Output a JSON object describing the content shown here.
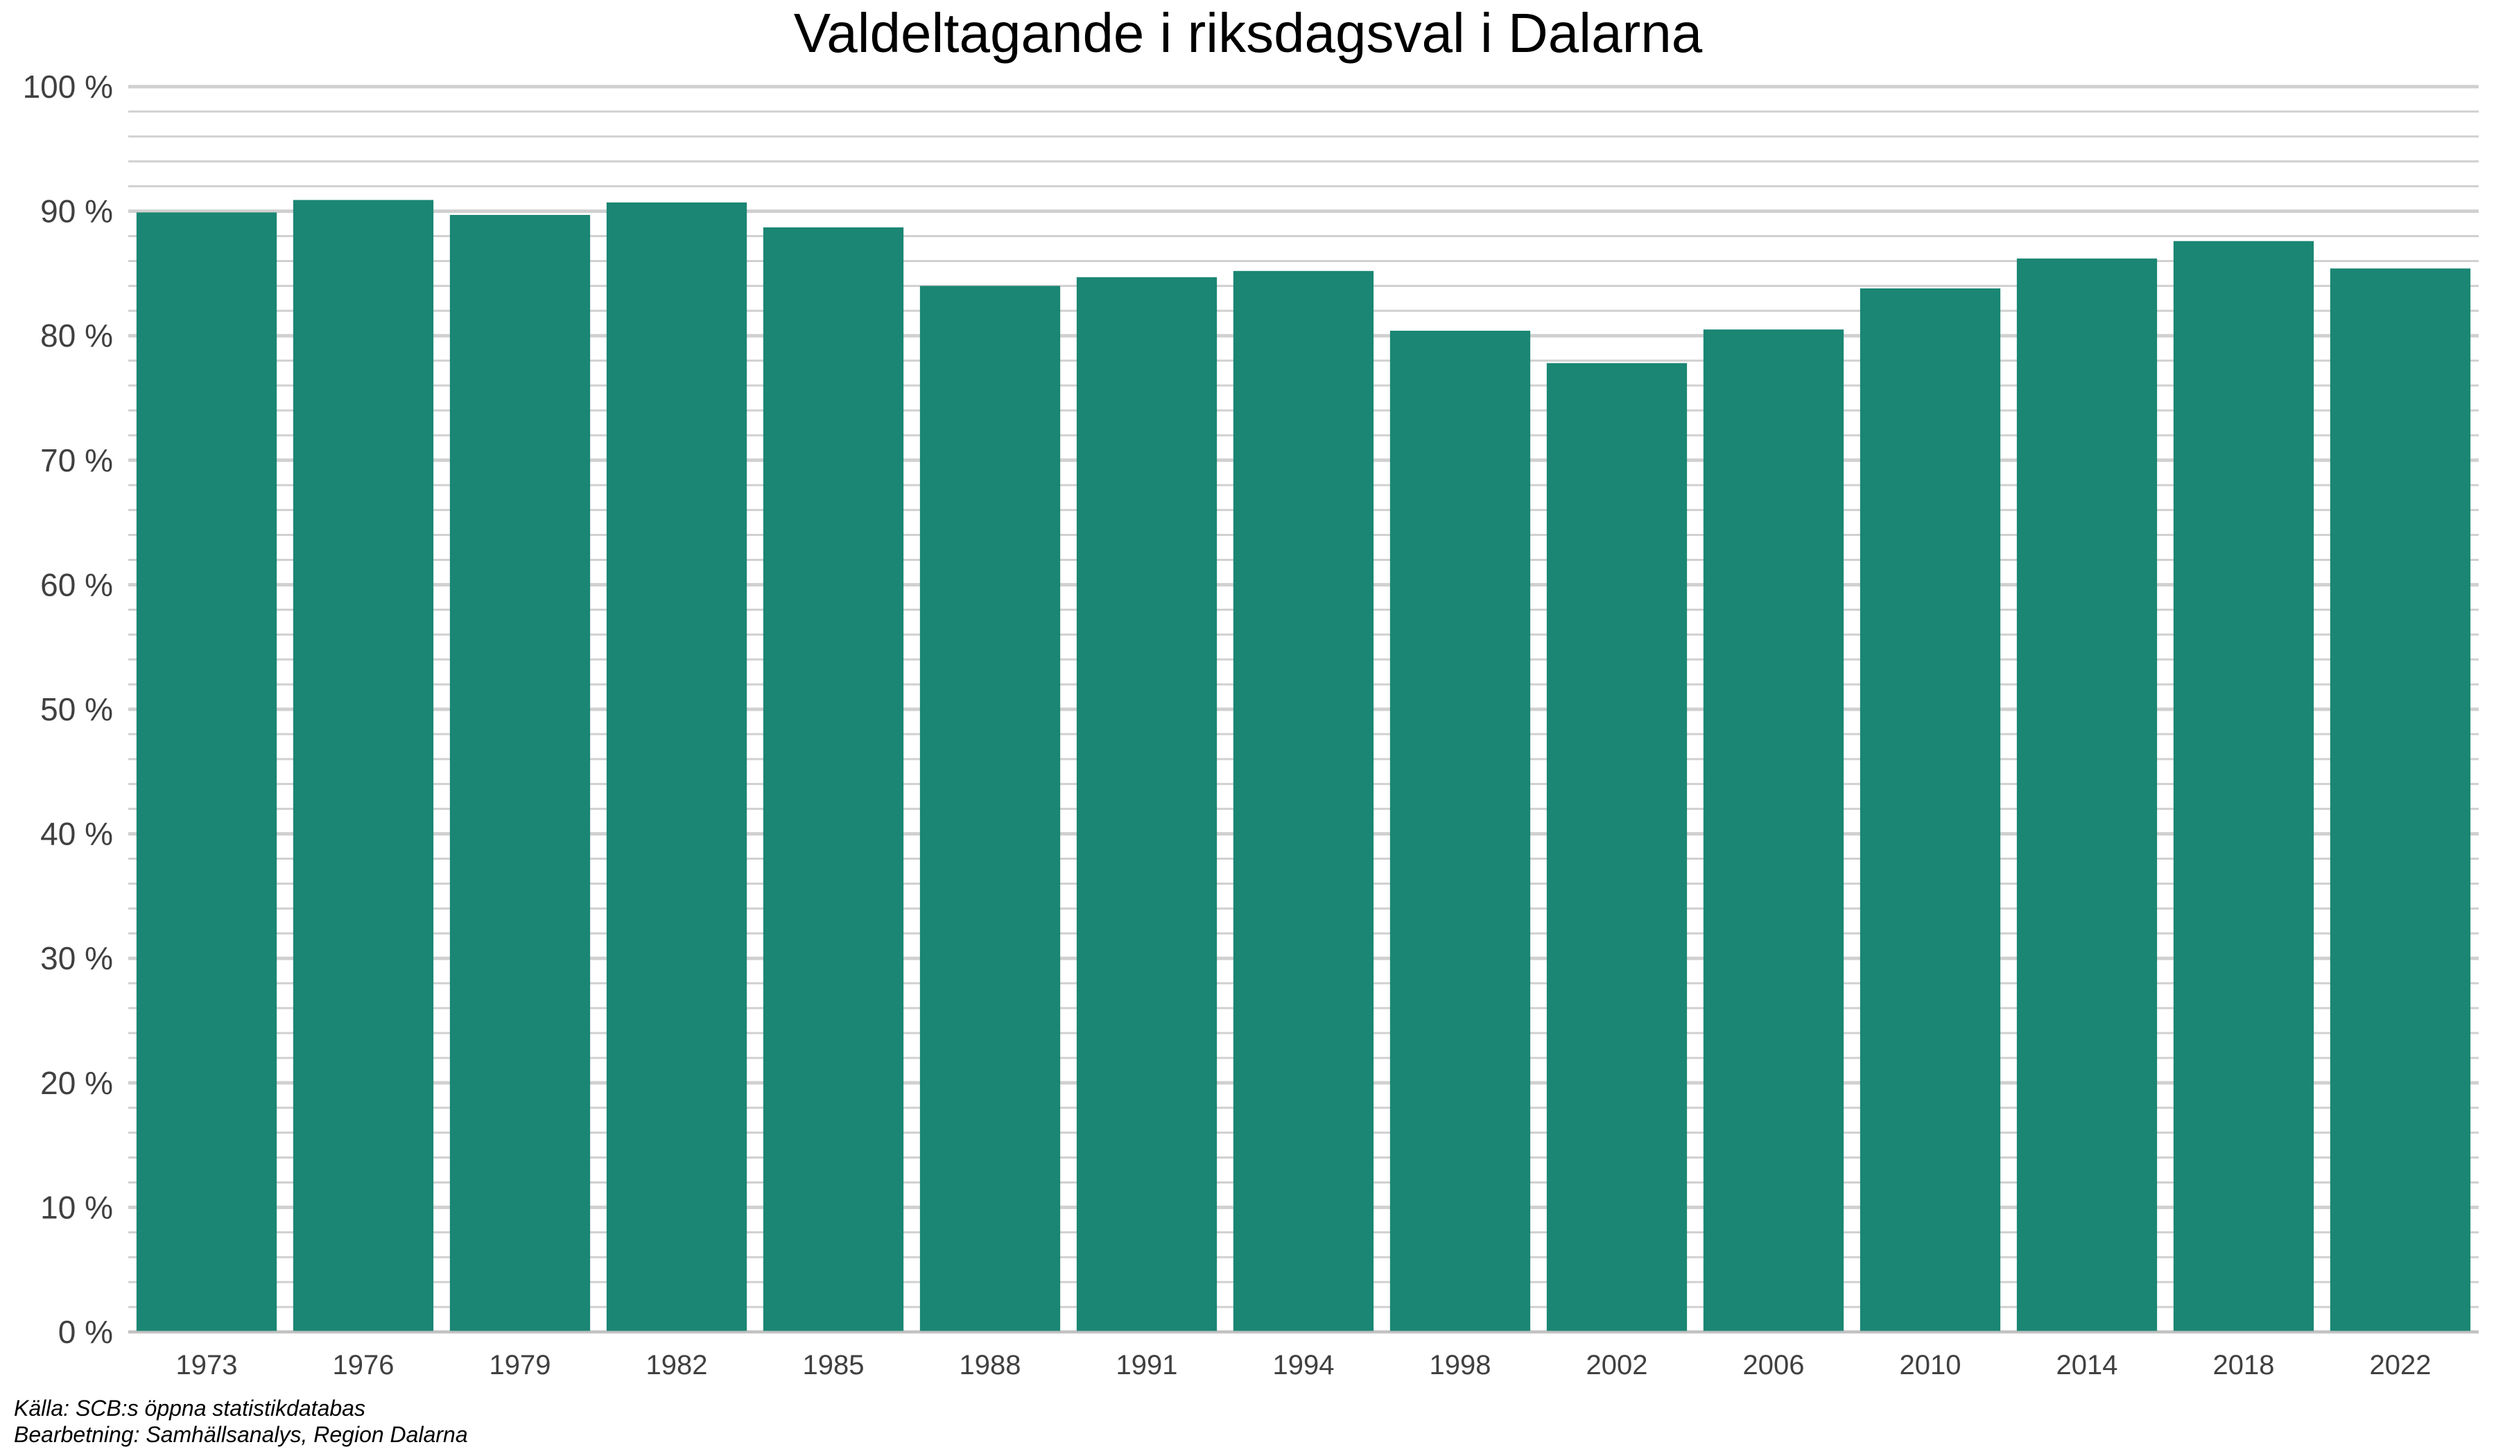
{
  "chart_data": {
    "type": "bar",
    "title": "Valdeltagande i riksdagsval i Dalarna",
    "xlabel": "",
    "ylabel": "",
    "categories": [
      "1973",
      "1976",
      "1979",
      "1982",
      "1985",
      "1988",
      "1991",
      "1994",
      "1998",
      "2002",
      "2006",
      "2010",
      "2014",
      "2018",
      "2022"
    ],
    "values": [
      89.9,
      90.9,
      89.7,
      90.7,
      88.7,
      84.0,
      84.7,
      85.2,
      80.4,
      77.8,
      80.5,
      83.8,
      86.2,
      87.6,
      85.4
    ],
    "ylim": [
      0,
      100
    ],
    "yticks": [
      0,
      10,
      20,
      30,
      40,
      50,
      60,
      70,
      80,
      90,
      100
    ],
    "ytick_labels": [
      "0 %",
      "10 %",
      "20 %",
      "30 %",
      "40 %",
      "50 %",
      "60 %",
      "70 %",
      "80 %",
      "90 %",
      "100 %"
    ],
    "grid": true,
    "bar_color": "#1a8673",
    "grid_color": "#d0d0d0"
  },
  "caption": {
    "source": "Källa: SCB:s öppna statistikdatabas",
    "processing": "Bearbetning: Samhällsanalys, Region Dalarna"
  }
}
